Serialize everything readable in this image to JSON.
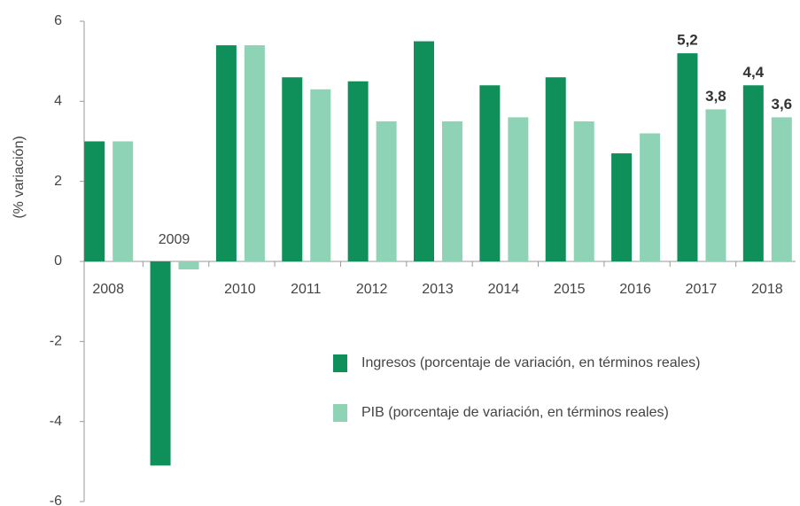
{
  "chart_data": {
    "type": "bar",
    "y_label": "(% variación)",
    "categories": [
      "2008",
      "2009",
      "2010",
      "2011",
      "2012",
      "2013",
      "2014",
      "2015",
      "2016",
      "2017",
      "2018"
    ],
    "series": [
      {
        "name": "Ingresos (porcentaje de variación, en términos reales)",
        "color": "#0f8f5a",
        "values": [
          3.0,
          -5.1,
          5.4,
          4.6,
          4.5,
          5.5,
          4.4,
          4.6,
          2.7,
          5.2,
          4.4
        ],
        "value_labels": [
          null,
          null,
          null,
          null,
          null,
          null,
          null,
          null,
          null,
          "5,2",
          "4,4"
        ]
      },
      {
        "name": "PIB (porcentaje de variación, en términos reales)",
        "color": "#8ed3b5",
        "values": [
          3.0,
          -0.2,
          5.4,
          4.3,
          3.5,
          3.5,
          3.6,
          3.5,
          3.2,
          3.8,
          3.6
        ],
        "value_labels": [
          null,
          null,
          null,
          null,
          null,
          null,
          null,
          null,
          null,
          "3,8",
          "3,6"
        ]
      }
    ],
    "ylim": [
      -6,
      6
    ],
    "yticks": [
      -6,
      -4,
      -2,
      0,
      2,
      4,
      6
    ]
  }
}
